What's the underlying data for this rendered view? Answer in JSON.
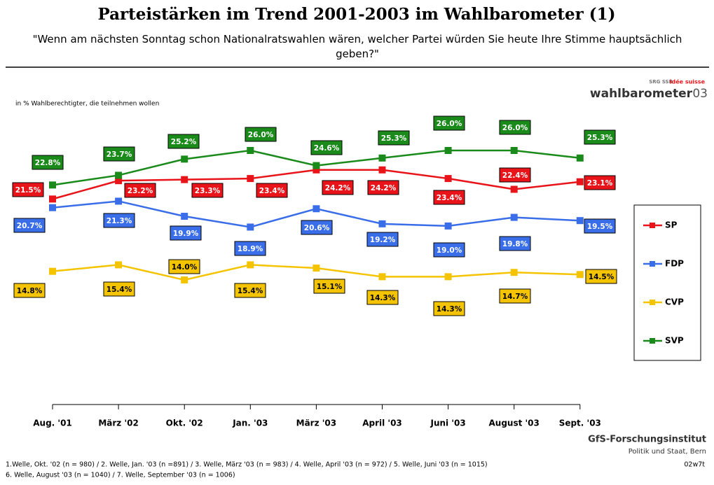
{
  "chart_data": {
    "type": "line",
    "title": "Parteistärken im Trend 2001-2003 im Wahlbarometer (1)",
    "subtitle": "\"Wenn am nächsten Sonntag schon Nationalratswahlen wären, welcher Partei würden Sie heute Ihre Stimme hauptsächlich geben?\"",
    "note": "in % Wahlberechtigter, die teilnehmen wollen",
    "categories": [
      "Aug. '01",
      "März '02",
      "Okt. '02",
      "Jan. '03",
      "März '03",
      "April '03",
      "Juni '03",
      "August '03",
      "Sept. '03"
    ],
    "series": [
      {
        "name": "SP",
        "color": "#e8141a",
        "values": [
          21.5,
          23.2,
          23.3,
          23.4,
          24.2,
          24.2,
          23.4,
          22.4,
          23.1
        ],
        "value_labels": [
          "21.5%",
          "23.2%",
          "23.3%",
          "23.4%",
          "24.2%",
          "24.2%",
          "23.4%",
          "22.4%",
          "23.1%"
        ]
      },
      {
        "name": "FDP",
        "color": "#3a6ee8",
        "values": [
          20.7,
          21.3,
          19.9,
          18.9,
          20.6,
          19.2,
          19.0,
          19.8,
          19.5
        ],
        "value_labels": [
          "20.7%",
          "21.3%",
          "19.9%",
          "18.9%",
          "20.6%",
          "19.2%",
          "19.0%",
          "19.8%",
          "19.5%"
        ]
      },
      {
        "name": "CVP",
        "color": "#f5c400",
        "values": [
          14.8,
          15.4,
          14.0,
          15.4,
          15.1,
          14.3,
          14.3,
          14.7,
          14.5
        ],
        "value_labels": [
          "14.8%",
          "15.4%",
          "14.0%",
          "15.4%",
          "15.1%",
          "14.3%",
          "14.3%",
          "14.7%",
          "14.5%"
        ]
      },
      {
        "name": "SVP",
        "color": "#1a8a1a",
        "values": [
          22.8,
          23.7,
          25.2,
          26.0,
          24.6,
          25.3,
          26.0,
          26.0,
          25.3
        ],
        "value_labels": [
          "22.8%",
          "23.7%",
          "25.2%",
          "26.0%",
          "24.6%",
          "25.3%",
          "26.0%",
          "26.0%",
          "25.3%"
        ]
      }
    ],
    "legend": "right"
  },
  "branding": {
    "srg": "SRG SSR",
    "idee": "idée suisse",
    "wahlbarometer": "wahlbarometer",
    "year": "03"
  },
  "footer": {
    "institute": "GfS-Forschungsinstitut",
    "department": "Politik und Staat, Bern",
    "notes": [
      "1.Welle, Okt. '02 (n = 980) / 2. Welle, Jan. '03 (n =891) / 3. Welle, März '03 (n = 983) / 4. Welle, April '03 (n = 972) / 5. Welle, Juni '03 (n = 1015)",
      "6. Welle, August '03 (n = 1040) / 7. Welle, September '03 (n = 1006)"
    ],
    "code": "02w7t"
  }
}
